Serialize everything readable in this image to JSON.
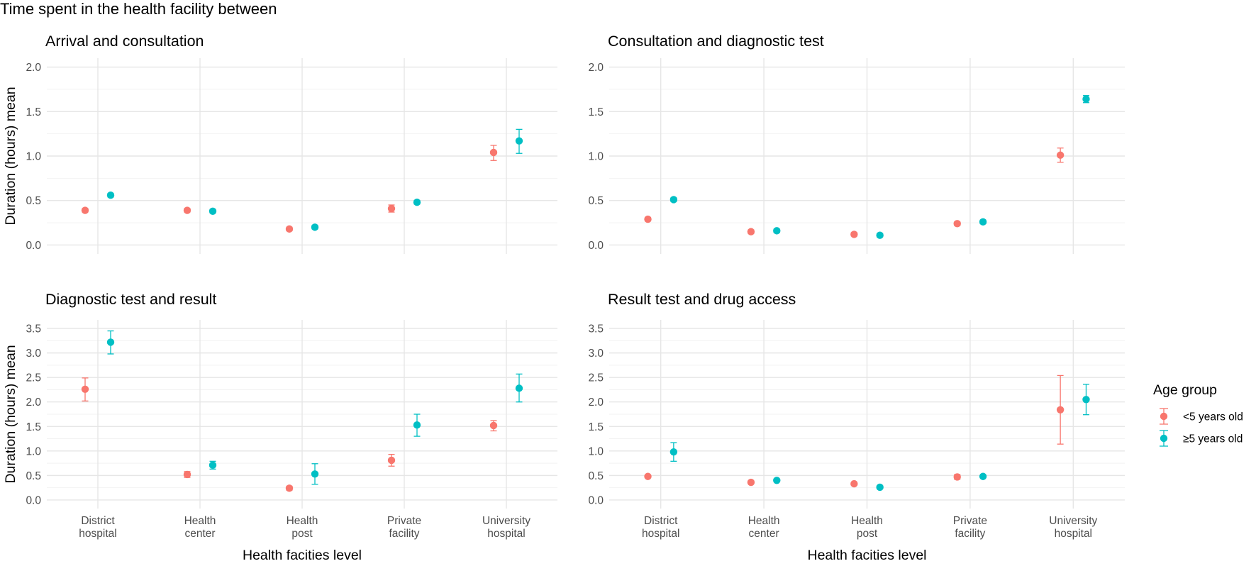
{
  "figure": {
    "title": "Time spent in the health facility between"
  },
  "legend": {
    "title": "Age group",
    "placement": "right",
    "entries": [
      {
        "name": "<5 years old",
        "color": "#F8766D"
      },
      {
        "name": "≥5 years old",
        "color": "#00BFC4"
      }
    ]
  },
  "chart_data": [
    {
      "type": "scatter",
      "subtype": "point-with-error-bars",
      "title": "Arrival and consultation",
      "xlabel": "",
      "ylabel": "Duration (hours) mean",
      "categories": [
        "District\nhospital",
        "Health\ncenter",
        "Health\npost",
        "Private\nfacility",
        "University\nhospital"
      ],
      "show_x_tick_labels": false,
      "ylim": [
        -0.1,
        2.1
      ],
      "yticks": [
        0.0,
        0.5,
        1.0,
        1.5,
        2.0
      ],
      "ytick_labels": [
        "0.0",
        "0.5",
        "1.0",
        "1.5",
        "2.0"
      ],
      "grid": true,
      "series": [
        {
          "name": "<5 years old",
          "values": [
            0.39,
            0.39,
            0.18,
            0.41,
            1.04
          ],
          "lower": [
            0.37,
            0.37,
            0.16,
            0.37,
            0.95
          ],
          "upper": [
            0.41,
            0.41,
            0.2,
            0.45,
            1.12
          ]
        },
        {
          "name": "≥5 years old",
          "values": [
            0.56,
            0.38,
            0.2,
            0.48,
            1.17
          ],
          "lower": [
            0.54,
            0.36,
            0.18,
            0.46,
            1.03
          ],
          "upper": [
            0.58,
            0.4,
            0.22,
            0.5,
            1.3
          ]
        }
      ]
    },
    {
      "type": "scatter",
      "subtype": "point-with-error-bars",
      "title": "Consultation and diagnostic test",
      "xlabel": "",
      "ylabel": "",
      "categories": [
        "District\nhospital",
        "Health\ncenter",
        "Health\npost",
        "Private\nfacility",
        "University\nhospital"
      ],
      "show_x_tick_labels": false,
      "ylim": [
        -0.1,
        2.1
      ],
      "yticks": [
        0.0,
        0.5,
        1.0,
        1.5,
        2.0
      ],
      "ytick_labels": [
        "0.0",
        "0.5",
        "1.0",
        "1.5",
        "2.0"
      ],
      "grid": true,
      "series": [
        {
          "name": "<5 years old",
          "values": [
            0.29,
            0.15,
            0.12,
            0.24,
            1.01
          ],
          "lower": [
            0.27,
            0.13,
            0.1,
            0.22,
            0.93
          ],
          "upper": [
            0.31,
            0.17,
            0.14,
            0.26,
            1.09
          ]
        },
        {
          "name": "≥5 years old",
          "values": [
            0.51,
            0.16,
            0.11,
            0.26,
            1.64
          ],
          "lower": [
            0.49,
            0.14,
            0.09,
            0.24,
            1.6
          ],
          "upper": [
            0.53,
            0.18,
            0.13,
            0.28,
            1.68
          ]
        }
      ]
    },
    {
      "type": "scatter",
      "subtype": "point-with-error-bars",
      "title": "Diagnostic test and result",
      "xlabel": "Health facities level",
      "ylabel": "Duration (hours) mean",
      "categories": [
        "District\nhospital",
        "Health\ncenter",
        "Health\npost",
        "Private\nfacility",
        "University\nhospital"
      ],
      "show_x_tick_labels": true,
      "ylim": [
        -0.175,
        3.675
      ],
      "yticks": [
        0.0,
        0.5,
        1.0,
        1.5,
        2.0,
        2.5,
        3.0,
        3.5
      ],
      "ytick_labels": [
        "0.0",
        "0.5",
        "1.0",
        "1.5",
        "2.0",
        "2.5",
        "3.0",
        "3.5"
      ],
      "grid": true,
      "series": [
        {
          "name": "<5 years old",
          "values": [
            2.26,
            0.52,
            0.24,
            0.81,
            1.52
          ],
          "lower": [
            2.02,
            0.46,
            0.2,
            0.69,
            1.41
          ],
          "upper": [
            2.49,
            0.58,
            0.28,
            0.93,
            1.62
          ]
        },
        {
          "name": "≥5 years old",
          "values": [
            3.22,
            0.71,
            0.53,
            1.53,
            2.28
          ],
          "lower": [
            2.98,
            0.63,
            0.32,
            1.3,
            2.0
          ],
          "upper": [
            3.45,
            0.79,
            0.74,
            1.75,
            2.57
          ]
        }
      ]
    },
    {
      "type": "scatter",
      "subtype": "point-with-error-bars",
      "title": "Result test and drug access",
      "xlabel": "Health facities level",
      "ylabel": "",
      "categories": [
        "District\nhospital",
        "Health\ncenter",
        "Health\npost",
        "Private\nfacility",
        "University\nhospital"
      ],
      "show_x_tick_labels": true,
      "ylim": [
        -0.175,
        3.675
      ],
      "yticks": [
        0.0,
        0.5,
        1.0,
        1.5,
        2.0,
        2.5,
        3.0,
        3.5
      ],
      "ytick_labels": [
        "0.0",
        "0.5",
        "1.0",
        "1.5",
        "2.0",
        "2.5",
        "3.0",
        "3.5"
      ],
      "grid": true,
      "series": [
        {
          "name": "<5 years old",
          "values": [
            0.48,
            0.36,
            0.33,
            0.47,
            1.84
          ],
          "lower": [
            0.45,
            0.33,
            0.3,
            0.42,
            1.14
          ],
          "upper": [
            0.51,
            0.39,
            0.36,
            0.52,
            2.54
          ]
        },
        {
          "name": "≥5 years old",
          "values": [
            0.98,
            0.4,
            0.26,
            0.48,
            2.05
          ],
          "lower": [
            0.79,
            0.37,
            0.23,
            0.45,
            1.74
          ],
          "upper": [
            1.17,
            0.43,
            0.29,
            0.51,
            2.36
          ]
        }
      ]
    }
  ]
}
